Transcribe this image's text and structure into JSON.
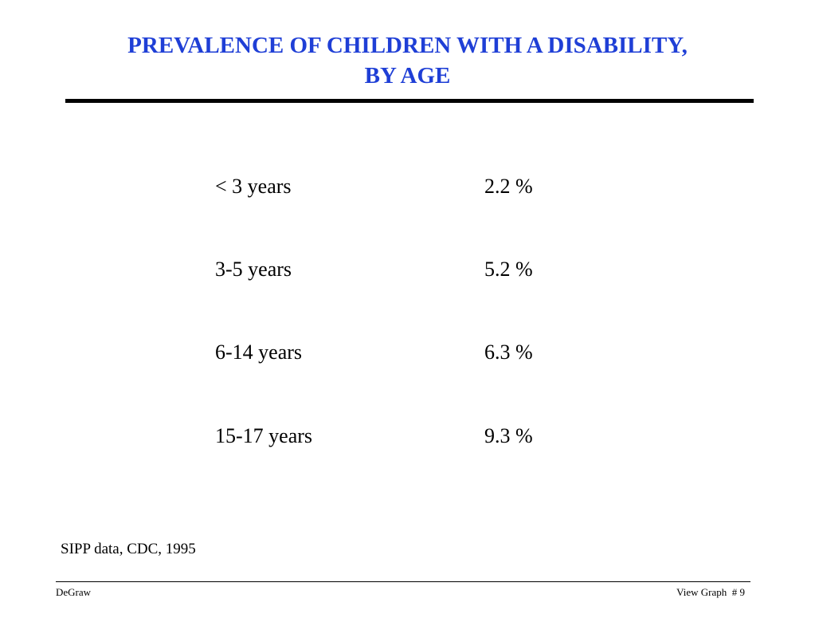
{
  "title": {
    "line1": "PREVALENCE OF CHILDREN WITH A DISABILITY,",
    "line2": "BY AGE",
    "color": "#1f3fd6"
  },
  "table": {
    "rows": [
      {
        "age": "< 3 years",
        "percent": "2.2 %"
      },
      {
        "age": "3-5 years",
        "percent": "5.2 %"
      },
      {
        "age": "6-14 years",
        "percent": "6.3 %"
      },
      {
        "age": "15-17 years",
        "percent": "9.3 %"
      }
    ]
  },
  "source": "SIPP data, CDC, 1995",
  "footer": {
    "author": "DeGraw",
    "page_label": "View Graph  # 9"
  }
}
